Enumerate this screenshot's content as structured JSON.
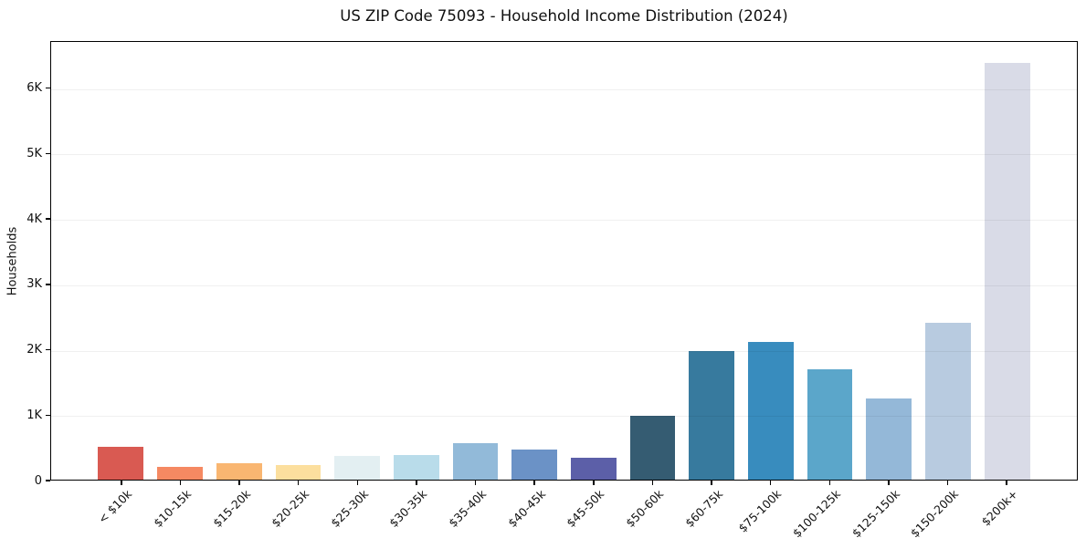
{
  "chart_data": {
    "type": "bar",
    "title": "US ZIP Code 75093 - Household Income Distribution (2024)",
    "xlabel": "",
    "ylabel": "Households",
    "categories": [
      "< $10k",
      "$10-15k",
      "$15-20k",
      "$20-25k",
      "$25-30k",
      "$30-35k",
      "$35-40k",
      "$40-45k",
      "$45-50k",
      "$50-60k",
      "$60-75k",
      "$75-100k",
      "$100-125k",
      "$125-150k",
      "$150-200k",
      "$200k+"
    ],
    "values": [
      500,
      190,
      250,
      220,
      370,
      375,
      555,
      465,
      330,
      980,
      1970,
      2110,
      1700,
      1240,
      2410,
      6400
    ],
    "bar_colors": [
      "#d95a52",
      "#f58962",
      "#f9b671",
      "#fcdf9e",
      "#e3eff2",
      "#b9dcea",
      "#92bad9",
      "#6b92c6",
      "#5c5fa8",
      "#355c72",
      "#377a9e",
      "#388cbe",
      "#5ba6ca",
      "#94b8d8",
      "#b8cbe0",
      "#d9dbe7"
    ],
    "ylim": [
      0,
      6720
    ],
    "yticks": {
      "labels": [
        "0",
        "1K",
        "2K",
        "3K",
        "4K",
        "5K",
        "6K"
      ],
      "values": [
        0,
        1000,
        2000,
        3000,
        4000,
        5000,
        6000
      ]
    },
    "grid": "horizontal",
    "legend_position": "none",
    "xtick_rotation_deg": 45
  }
}
